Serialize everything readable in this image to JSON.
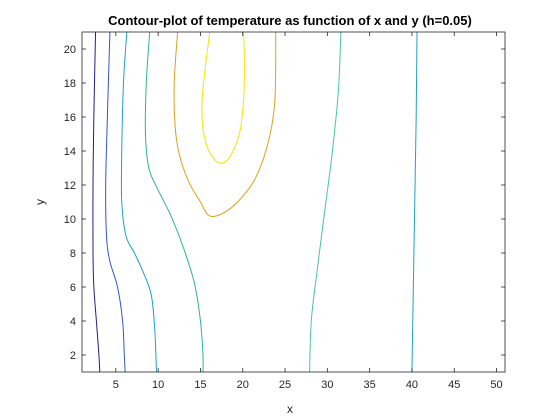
{
  "chart_data": {
    "type": "contour",
    "title": "Contour-plot of temperature as function of x and y (h=0.05)",
    "xlabel": "x",
    "ylabel": "y",
    "xlim": [
      1,
      51
    ],
    "ylim": [
      1,
      21
    ],
    "xticks": [
      5,
      10,
      15,
      20,
      25,
      30,
      35,
      40,
      45,
      50
    ],
    "yticks": [
      2,
      4,
      6,
      8,
      10,
      12,
      14,
      16,
      18,
      20
    ],
    "grid": false,
    "legend": "none",
    "contours": [
      {
        "color": "#1f1f8a",
        "points": [
          [
            2.6,
            21
          ],
          [
            2.4,
            16
          ],
          [
            2.3,
            12
          ],
          [
            2.3,
            8
          ],
          [
            2.4,
            6
          ],
          [
            2.7,
            4
          ],
          [
            3.0,
            2
          ],
          [
            3.1,
            1
          ]
        ]
      },
      {
        "color": "#3355cc",
        "points": [
          [
            4.3,
            21
          ],
          [
            4.0,
            16
          ],
          [
            3.8,
            12
          ],
          [
            3.9,
            9
          ],
          [
            4.3,
            7.5
          ],
          [
            5.2,
            6
          ],
          [
            5.8,
            4
          ],
          [
            6.0,
            2
          ],
          [
            6.1,
            1
          ]
        ]
      },
      {
        "color": "#1f9fc8",
        "points": [
          [
            6.3,
            21
          ],
          [
            5.9,
            18
          ],
          [
            5.7,
            14
          ],
          [
            5.7,
            11
          ],
          [
            6.2,
            9
          ],
          [
            7.2,
            8
          ],
          [
            8.3,
            6.8
          ],
          [
            9.2,
            5.5
          ],
          [
            9.6,
            3.5
          ],
          [
            9.8,
            1
          ]
        ]
      },
      {
        "color": "#2bb39a",
        "points": [
          [
            9.0,
            21
          ],
          [
            8.6,
            18
          ],
          [
            8.5,
            15
          ],
          [
            8.9,
            13
          ],
          [
            9.9,
            11.8
          ],
          [
            11.5,
            10.2
          ],
          [
            13.0,
            8.3
          ],
          [
            14.3,
            6.2
          ],
          [
            15.0,
            4
          ],
          [
            15.3,
            2
          ],
          [
            15.3,
            1
          ]
        ]
      },
      {
        "color": "#d9a21e",
        "points": [
          [
            12.3,
            21
          ],
          [
            11.9,
            18
          ],
          [
            12.0,
            15.5
          ],
          [
            12.5,
            13.8
          ],
          [
            13.6,
            12.2
          ],
          [
            15.0,
            11.0
          ],
          [
            16.0,
            10.2
          ],
          [
            17.5,
            10.3
          ],
          [
            19.4,
            11.0
          ],
          [
            21.5,
            12.4
          ],
          [
            23.0,
            14.5
          ],
          [
            23.8,
            17
          ],
          [
            23.9,
            21
          ]
        ]
      },
      {
        "color": "#f2e600",
        "points": [
          [
            16.1,
            21
          ],
          [
            15.6,
            19
          ],
          [
            15.2,
            17
          ],
          [
            15.3,
            15.3
          ],
          [
            16.0,
            14.0
          ],
          [
            17.2,
            13.3
          ],
          [
            18.4,
            13.6
          ],
          [
            19.6,
            15.0
          ],
          [
            20.1,
            17
          ],
          [
            20.2,
            19
          ],
          [
            20.1,
            21
          ]
        ]
      },
      {
        "color": "#48c79a",
        "points": [
          [
            27.9,
            1
          ],
          [
            28.1,
            4
          ],
          [
            28.8,
            7
          ],
          [
            29.7,
            10.5
          ],
          [
            30.6,
            14
          ],
          [
            31.3,
            17.5
          ],
          [
            31.6,
            21
          ]
        ]
      },
      {
        "color": "#1f9fc8",
        "points": [
          [
            40.0,
            1
          ],
          [
            40.1,
            4
          ],
          [
            40.2,
            7
          ],
          [
            40.3,
            10
          ],
          [
            40.4,
            13
          ],
          [
            40.5,
            16
          ],
          [
            40.6,
            21
          ]
        ]
      }
    ]
  }
}
